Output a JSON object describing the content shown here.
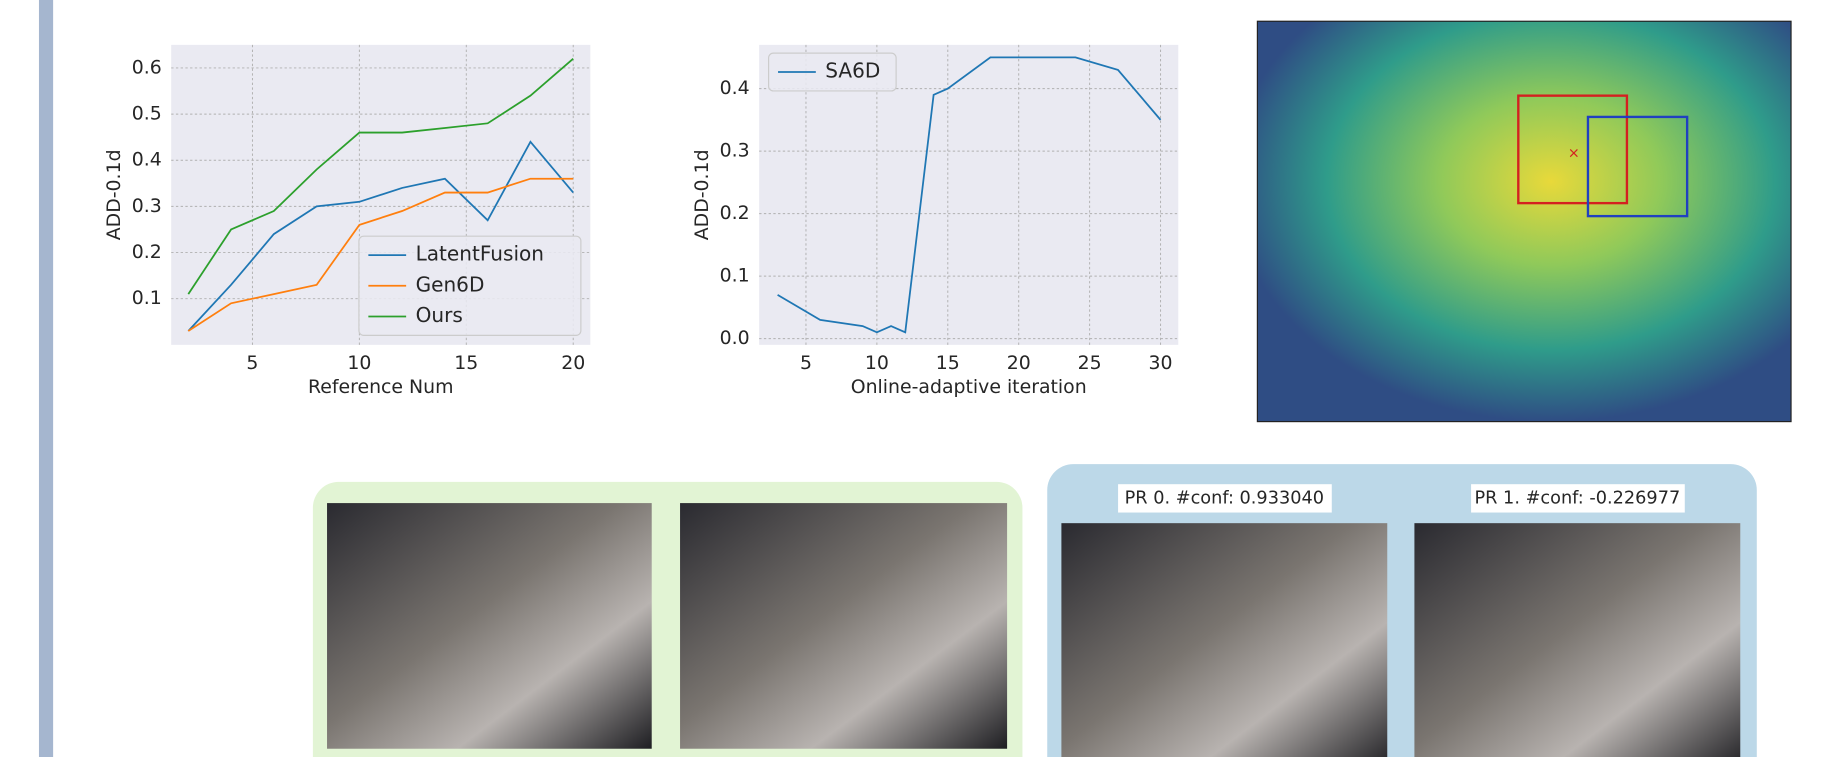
{
  "chart_data": [
    {
      "type": "line",
      "xlabel": "Reference Num",
      "ylabel": "ADD-0.1d",
      "x": [
        2,
        4,
        6,
        8,
        10,
        12,
        14,
        16,
        18,
        20
      ],
      "series": [
        {
          "name": "LatentFusion",
          "color": "#1f77b4",
          "values": [
            0.03,
            0.13,
            0.24,
            0.3,
            0.31,
            0.34,
            0.36,
            0.27,
            0.44,
            0.33
          ]
        },
        {
          "name": "Gen6D",
          "color": "#ff7f0e",
          "values": [
            0.03,
            0.09,
            0.11,
            0.13,
            0.26,
            0.29,
            0.33,
            0.33,
            0.36,
            0.36
          ]
        },
        {
          "name": "Ours",
          "color": "#2ca02c",
          "values": [
            0.11,
            0.25,
            0.29,
            0.38,
            0.46,
            0.46,
            0.47,
            0.48,
            0.54,
            0.62
          ]
        }
      ],
      "xlim": [
        1.2,
        20.8
      ],
      "ylim": [
        0.0,
        0.65
      ],
      "xticks": [
        5,
        10,
        15,
        20
      ],
      "yticks": [
        0.1,
        0.2,
        0.3,
        0.4,
        0.5,
        0.6
      ],
      "grid": true,
      "legend": "lower right"
    },
    {
      "type": "line",
      "xlabel": "Online-adaptive iteration",
      "ylabel": "ADD-0.1d",
      "x": [
        3,
        6,
        9,
        10,
        11,
        12,
        14,
        15,
        18,
        20,
        22,
        24,
        27,
        30
      ],
      "series": [
        {
          "name": "SA6D",
          "color": "#1f77b4",
          "values": [
            0.07,
            0.03,
            0.02,
            0.01,
            0.02,
            0.01,
            0.39,
            0.4,
            0.45,
            0.45,
            0.45,
            0.45,
            0.43,
            0.35
          ]
        }
      ],
      "xlim": [
        1.7,
        31.25
      ],
      "ylim": [
        -0.01,
        0.47
      ],
      "xticks": [
        5,
        10,
        15,
        20,
        25,
        30
      ],
      "yticks": [
        {
          "value": 0,
          "label": "0.0"
        },
        0.1,
        0.2,
        0.3,
        0.4
      ],
      "grid": true,
      "legend": "upper left"
    }
  ],
  "panels": {
    "pr_labels": [
      "PR 0. #conf: 0.933040",
      "PR 1. #conf: -0.226977"
    ]
  }
}
